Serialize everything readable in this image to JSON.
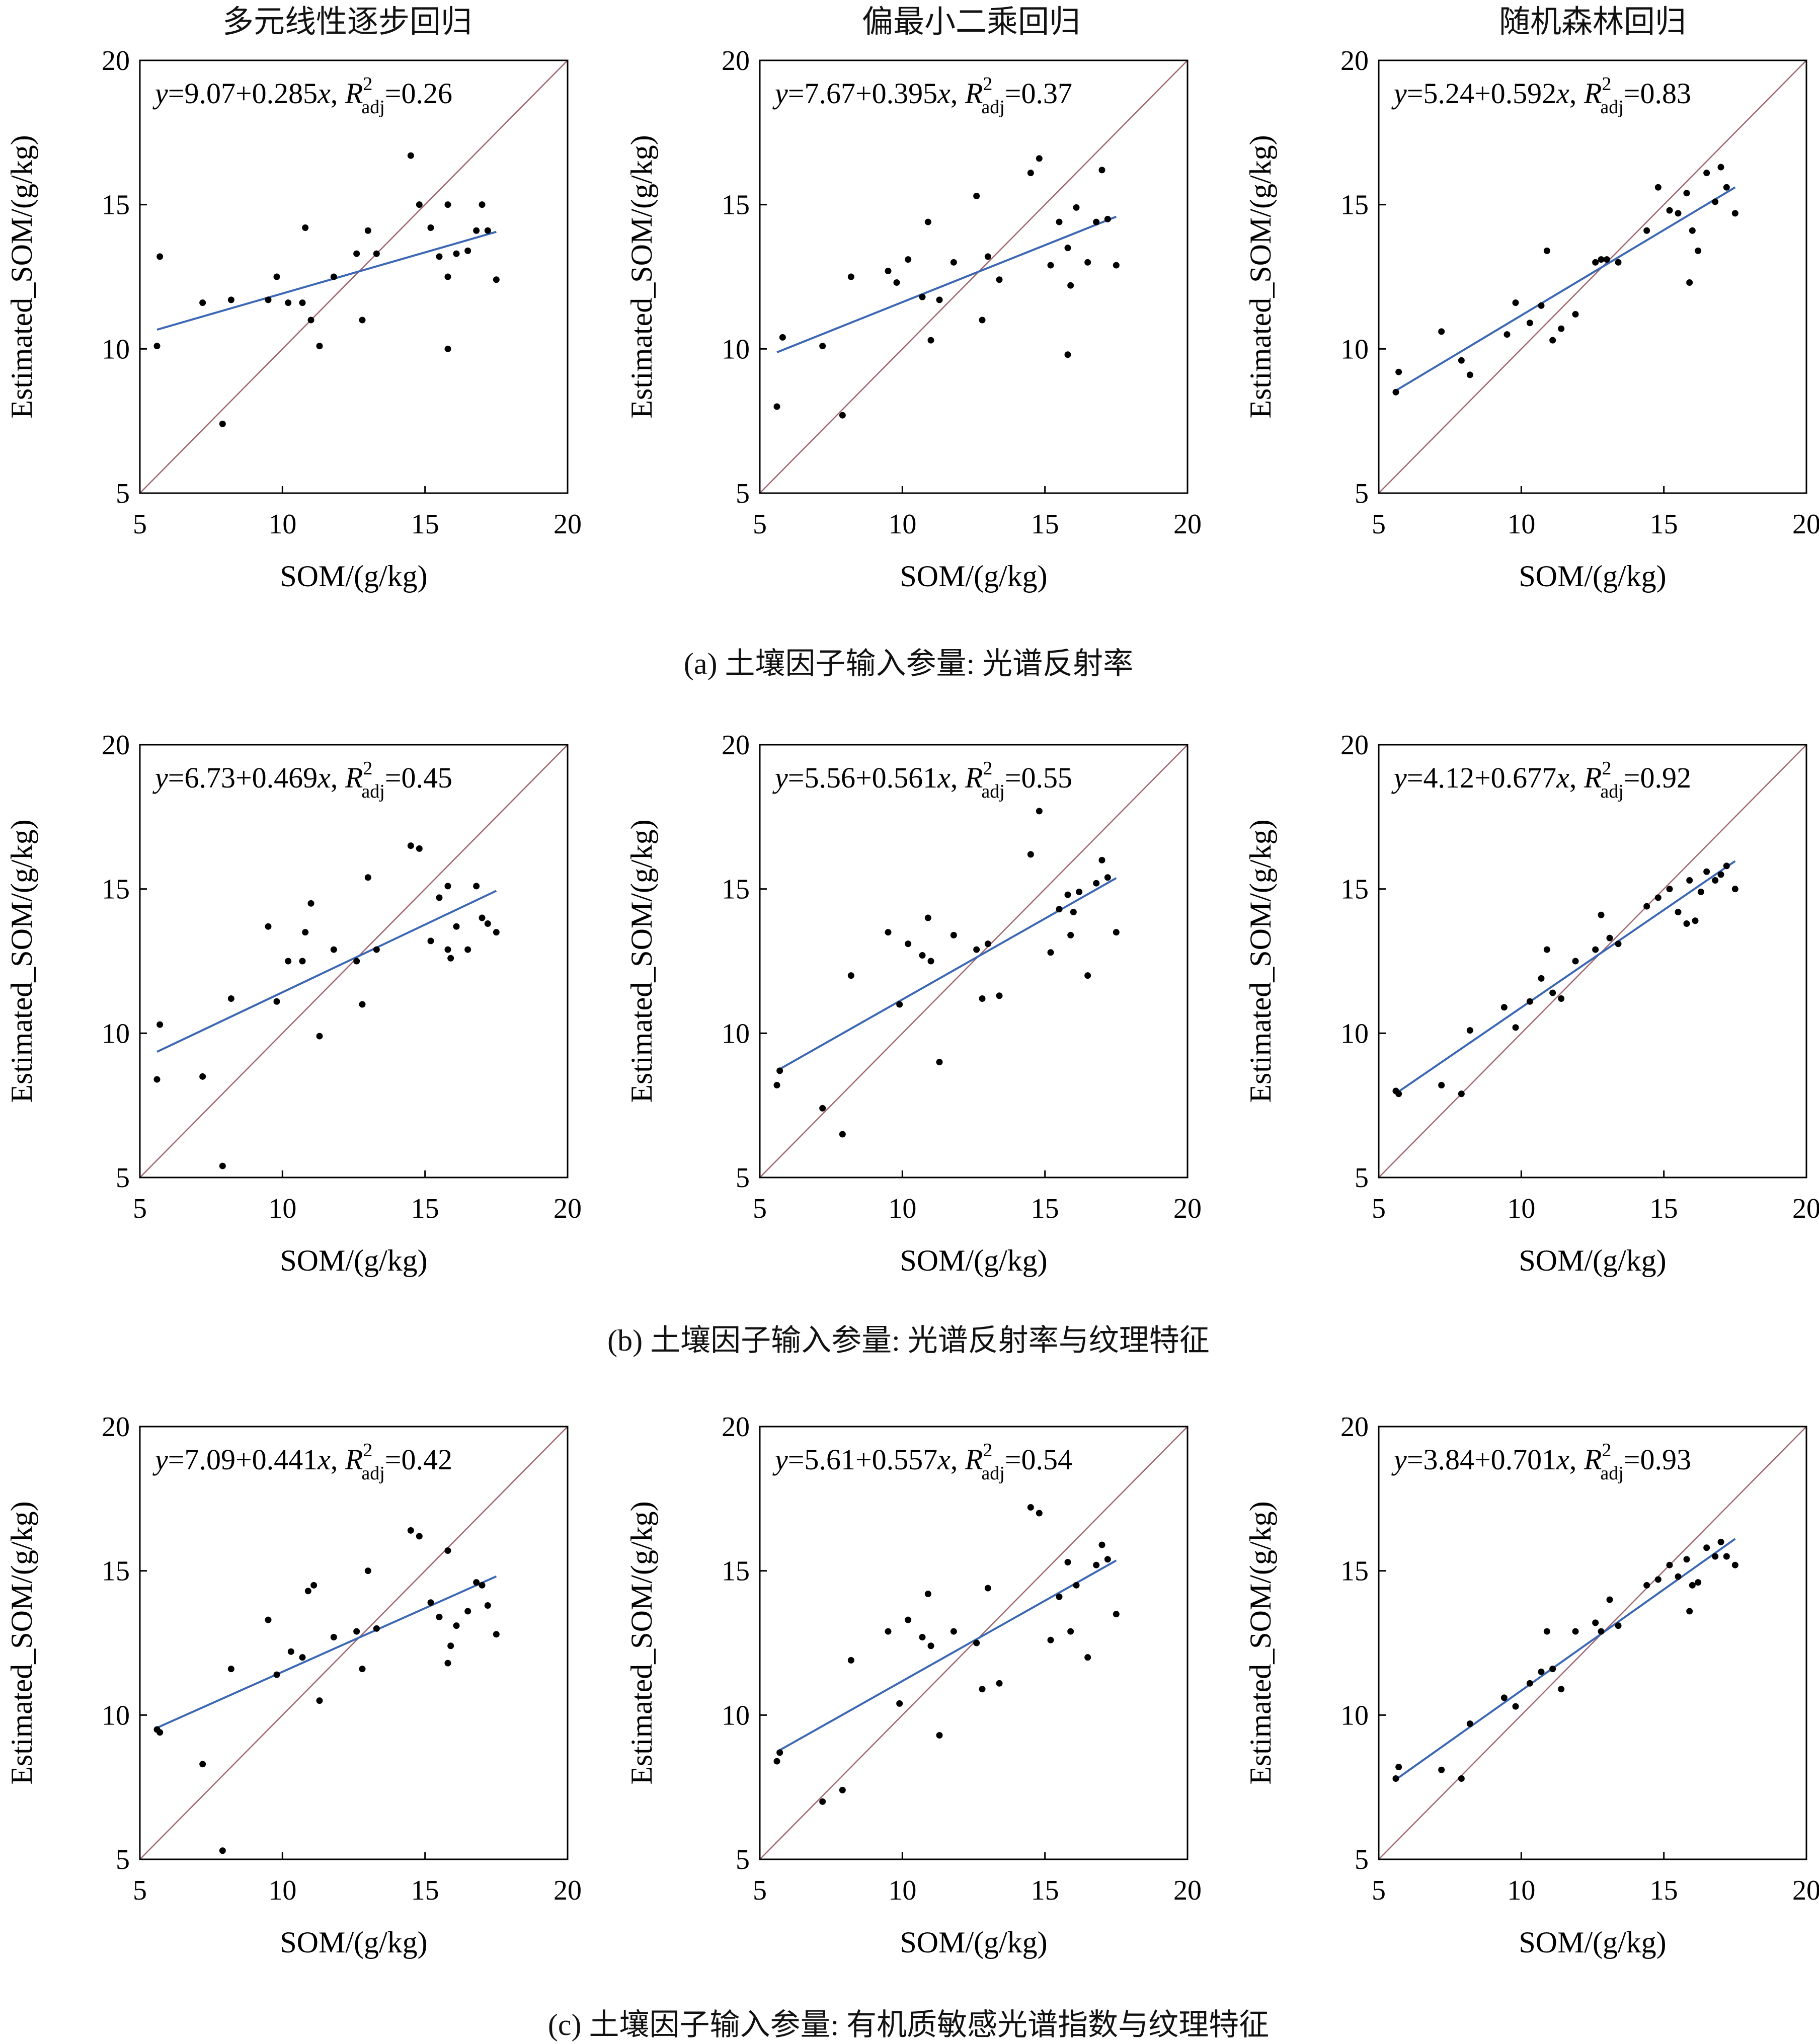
{
  "column_titles": [
    "多元线性逐步回归",
    "偏最小二乘回归",
    "随机森林回归"
  ],
  "row_captions": [
    "(a) 土壤因子输入参量: 光谱反射率",
    "(b) 土壤因子输入参量: 光谱反射率与纹理特征",
    "(c) 土壤因子输入参量: 有机质敏感光谱指数与纹理特征"
  ],
  "colors": {
    "fit_line": "#3b67b5",
    "identity_line": "#a0636b",
    "points": "#000000",
    "axes": "#000000"
  },
  "chart_data": [
    {
      "type": "scatter",
      "row": 0,
      "col": 0,
      "xlabel": "SOM/(g/kg)",
      "ylabel": "Estimated_SOM/(g/kg)",
      "xlim": [
        5,
        20
      ],
      "ylim": [
        5,
        20
      ],
      "xticks": [
        "5",
        "10",
        "15",
        "20"
      ],
      "yticks": [
        "5",
        "10",
        "15",
        "20"
      ],
      "equation": {
        "intercept": "9.07",
        "slope": "0.285",
        "r2": "0.26"
      },
      "fit": {
        "intercept": 9.07,
        "slope": 0.285
      },
      "points": [
        [
          5.6,
          10.1
        ],
        [
          5.7,
          13.2
        ],
        [
          7.2,
          11.6
        ],
        [
          7.9,
          7.4
        ],
        [
          8.2,
          11.7
        ],
        [
          9.5,
          11.7
        ],
        [
          9.8,
          12.5
        ],
        [
          10.2,
          11.6
        ],
        [
          10.7,
          11.6
        ],
        [
          10.8,
          14.2
        ],
        [
          11.0,
          11.0
        ],
        [
          11.3,
          10.1
        ],
        [
          11.8,
          12.5
        ],
        [
          12.6,
          13.3
        ],
        [
          12.8,
          11.0
        ],
        [
          13.0,
          14.1
        ],
        [
          13.3,
          13.3
        ],
        [
          14.5,
          16.7
        ],
        [
          14.8,
          15.0
        ],
        [
          15.2,
          14.2
        ],
        [
          15.5,
          13.2
        ],
        [
          15.8,
          15.0
        ],
        [
          15.8,
          12.5
        ],
        [
          15.8,
          10.0
        ],
        [
          16.1,
          13.3
        ],
        [
          16.5,
          13.4
        ],
        [
          16.8,
          14.1
        ],
        [
          17.0,
          15.0
        ],
        [
          17.2,
          14.1
        ],
        [
          17.5,
          12.4
        ]
      ]
    },
    {
      "type": "scatter",
      "row": 0,
      "col": 1,
      "xlabel": "SOM/(g/kg)",
      "ylabel": "Estimated_SOM/(g/kg)",
      "xlim": [
        5,
        20
      ],
      "ylim": [
        5,
        20
      ],
      "xticks": [
        "5",
        "10",
        "15",
        "20"
      ],
      "yticks": [
        "5",
        "10",
        "15",
        "20"
      ],
      "equation": {
        "intercept": "7.67",
        "slope": "0.395",
        "r2": "0.37"
      },
      "fit": {
        "intercept": 7.67,
        "slope": 0.395
      },
      "points": [
        [
          5.6,
          8.0
        ],
        [
          5.8,
          10.4
        ],
        [
          7.2,
          10.1
        ],
        [
          7.9,
          7.7
        ],
        [
          8.2,
          12.5
        ],
        [
          9.5,
          12.7
        ],
        [
          9.8,
          12.3
        ],
        [
          10.2,
          13.1
        ],
        [
          10.7,
          11.8
        ],
        [
          10.9,
          14.4
        ],
        [
          11.0,
          10.3
        ],
        [
          11.3,
          11.7
        ],
        [
          11.8,
          13.0
        ],
        [
          12.6,
          15.3
        ],
        [
          12.8,
          11.0
        ],
        [
          13.0,
          13.2
        ],
        [
          13.4,
          12.4
        ],
        [
          14.5,
          16.1
        ],
        [
          14.8,
          16.6
        ],
        [
          15.2,
          12.9
        ],
        [
          15.5,
          14.4
        ],
        [
          15.8,
          13.5
        ],
        [
          15.9,
          12.2
        ],
        [
          15.8,
          9.8
        ],
        [
          16.1,
          14.9
        ],
        [
          16.5,
          13.0
        ],
        [
          16.8,
          14.4
        ],
        [
          17.0,
          16.2
        ],
        [
          17.2,
          14.5
        ],
        [
          17.5,
          12.9
        ]
      ]
    },
    {
      "type": "scatter",
      "row": 0,
      "col": 2,
      "xlabel": "SOM/(g/kg)",
      "ylabel": "Estimated_SOM/(g/kg)",
      "xlim": [
        5,
        20
      ],
      "ylim": [
        5,
        20
      ],
      "xticks": [
        "5",
        "10",
        "15",
        "20"
      ],
      "yticks": [
        "5",
        "10",
        "15",
        "20"
      ],
      "equation": {
        "intercept": "5.24",
        "slope": "0.592",
        "r2": "0.83"
      },
      "fit": {
        "intercept": 5.24,
        "slope": 0.592
      },
      "points": [
        [
          5.6,
          8.5
        ],
        [
          5.7,
          9.2
        ],
        [
          7.2,
          10.6
        ],
        [
          7.9,
          9.6
        ],
        [
          8.2,
          9.1
        ],
        [
          9.5,
          10.5
        ],
        [
          9.8,
          11.6
        ],
        [
          10.3,
          10.9
        ],
        [
          10.7,
          11.5
        ],
        [
          10.9,
          13.4
        ],
        [
          11.1,
          10.3
        ],
        [
          11.4,
          10.7
        ],
        [
          11.9,
          11.2
        ],
        [
          12.6,
          13.0
        ],
        [
          12.8,
          13.1
        ],
        [
          13.0,
          13.1
        ],
        [
          13.4,
          13.0
        ],
        [
          14.4,
          14.1
        ],
        [
          14.8,
          15.6
        ],
        [
          15.2,
          14.8
        ],
        [
          15.5,
          14.7
        ],
        [
          15.8,
          15.4
        ],
        [
          15.9,
          12.3
        ],
        [
          16.0,
          14.1
        ],
        [
          16.2,
          13.4
        ],
        [
          16.5,
          16.1
        ],
        [
          16.8,
          15.1
        ],
        [
          17.0,
          16.3
        ],
        [
          17.2,
          15.6
        ],
        [
          17.5,
          14.7
        ]
      ]
    },
    {
      "type": "scatter",
      "row": 1,
      "col": 0,
      "xlabel": "SOM/(g/kg)",
      "ylabel": "Estimated_SOM/(g/kg)",
      "xlim": [
        5,
        20
      ],
      "ylim": [
        5,
        20
      ],
      "xticks": [
        "5",
        "10",
        "15",
        "20"
      ],
      "yticks": [
        "5",
        "10",
        "15",
        "20"
      ],
      "equation": {
        "intercept": "6.73",
        "slope": "0.469",
        "r2": "0.45"
      },
      "fit": {
        "intercept": 6.73,
        "slope": 0.469
      },
      "points": [
        [
          5.6,
          8.4
        ],
        [
          5.7,
          10.3
        ],
        [
          7.2,
          8.5
        ],
        [
          7.9,
          5.4
        ],
        [
          8.2,
          11.2
        ],
        [
          9.5,
          13.7
        ],
        [
          9.8,
          11.1
        ],
        [
          10.2,
          12.5
        ],
        [
          10.7,
          12.5
        ],
        [
          10.8,
          13.5
        ],
        [
          11.0,
          14.5
        ],
        [
          11.3,
          9.9
        ],
        [
          11.8,
          12.9
        ],
        [
          12.6,
          12.5
        ],
        [
          12.8,
          11.0
        ],
        [
          13.0,
          15.4
        ],
        [
          13.3,
          12.9
        ],
        [
          14.5,
          16.5
        ],
        [
          14.8,
          16.4
        ],
        [
          15.2,
          13.2
        ],
        [
          15.5,
          14.7
        ],
        [
          15.8,
          12.9
        ],
        [
          15.8,
          15.1
        ],
        [
          15.9,
          12.6
        ],
        [
          16.1,
          13.7
        ],
        [
          16.5,
          12.9
        ],
        [
          16.8,
          15.1
        ],
        [
          17.0,
          14.0
        ],
        [
          17.2,
          13.8
        ],
        [
          17.5,
          13.5
        ]
      ]
    },
    {
      "type": "scatter",
      "row": 1,
      "col": 1,
      "xlabel": "SOM/(g/kg)",
      "ylabel": "Estimated_SOM/(g/kg)",
      "xlim": [
        5,
        20
      ],
      "ylim": [
        5,
        20
      ],
      "xticks": [
        "5",
        "10",
        "15",
        "20"
      ],
      "yticks": [
        "5",
        "10",
        "15",
        "20"
      ],
      "equation": {
        "intercept": "5.56",
        "slope": "0.561",
        "r2": "0.55"
      },
      "fit": {
        "intercept": 5.56,
        "slope": 0.561
      },
      "points": [
        [
          5.6,
          8.2
        ],
        [
          5.7,
          8.7
        ],
        [
          7.2,
          7.4
        ],
        [
          7.9,
          6.5
        ],
        [
          8.2,
          12.0
        ],
        [
          9.5,
          13.5
        ],
        [
          9.9,
          11.0
        ],
        [
          10.2,
          13.1
        ],
        [
          10.7,
          12.7
        ],
        [
          10.9,
          14.0
        ],
        [
          11.0,
          12.5
        ],
        [
          11.3,
          9.0
        ],
        [
          11.8,
          13.4
        ],
        [
          12.6,
          12.9
        ],
        [
          12.8,
          11.2
        ],
        [
          13.0,
          13.1
        ],
        [
          13.4,
          11.3
        ],
        [
          14.5,
          16.2
        ],
        [
          14.8,
          17.7
        ],
        [
          15.2,
          12.8
        ],
        [
          15.5,
          14.3
        ],
        [
          15.8,
          14.8
        ],
        [
          15.9,
          13.4
        ],
        [
          16.0,
          14.2
        ],
        [
          16.2,
          14.9
        ],
        [
          16.5,
          12.0
        ],
        [
          16.8,
          15.2
        ],
        [
          17.0,
          16.0
        ],
        [
          17.2,
          15.4
        ],
        [
          17.5,
          13.5
        ]
      ]
    },
    {
      "type": "scatter",
      "row": 1,
      "col": 2,
      "xlabel": "SOM/(g/kg)",
      "ylabel": "Estimated_SOM/(g/kg)",
      "xlim": [
        5,
        20
      ],
      "ylim": [
        5,
        20
      ],
      "xticks": [
        "5",
        "10",
        "15",
        "20"
      ],
      "yticks": [
        "5",
        "10",
        "15",
        "20"
      ],
      "equation": {
        "intercept": "4.12",
        "slope": "0.677",
        "r2": "0.92"
      },
      "fit": {
        "intercept": 4.12,
        "slope": 0.677
      },
      "points": [
        [
          5.6,
          8.0
        ],
        [
          5.7,
          7.9
        ],
        [
          7.2,
          8.2
        ],
        [
          7.9,
          7.9
        ],
        [
          8.2,
          10.1
        ],
        [
          9.4,
          10.9
        ],
        [
          9.8,
          10.2
        ],
        [
          10.3,
          11.1
        ],
        [
          10.7,
          11.9
        ],
        [
          10.9,
          12.9
        ],
        [
          11.1,
          11.4
        ],
        [
          11.4,
          11.2
        ],
        [
          11.9,
          12.5
        ],
        [
          12.6,
          12.9
        ],
        [
          12.8,
          14.1
        ],
        [
          13.1,
          13.3
        ],
        [
          13.4,
          13.1
        ],
        [
          14.4,
          14.4
        ],
        [
          14.8,
          14.7
        ],
        [
          15.2,
          15.0
        ],
        [
          15.5,
          14.2
        ],
        [
          15.8,
          13.8
        ],
        [
          15.9,
          15.3
        ],
        [
          16.1,
          13.9
        ],
        [
          16.3,
          14.9
        ],
        [
          16.5,
          15.6
        ],
        [
          16.8,
          15.3
        ],
        [
          17.0,
          15.5
        ],
        [
          17.2,
          15.8
        ],
        [
          17.5,
          15.0
        ]
      ]
    },
    {
      "type": "scatter",
      "row": 2,
      "col": 0,
      "xlabel": "SOM/(g/kg)",
      "ylabel": "Estimated_SOM/(g/kg)",
      "xlim": [
        5,
        20
      ],
      "ylim": [
        5,
        20
      ],
      "xticks": [
        "5",
        "10",
        "15",
        "20"
      ],
      "yticks": [
        "5",
        "10",
        "15",
        "20"
      ],
      "equation": {
        "intercept": "7.09",
        "slope": "0.441",
        "r2": "0.42"
      },
      "fit": {
        "intercept": 7.09,
        "slope": 0.441
      },
      "points": [
        [
          5.6,
          9.5
        ],
        [
          5.7,
          9.4
        ],
        [
          7.2,
          8.3
        ],
        [
          7.9,
          5.3
        ],
        [
          8.2,
          11.6
        ],
        [
          9.5,
          13.3
        ],
        [
          9.8,
          11.4
        ],
        [
          10.3,
          12.2
        ],
        [
          10.7,
          12.0
        ],
        [
          10.9,
          14.3
        ],
        [
          11.1,
          14.5
        ],
        [
          11.3,
          10.5
        ],
        [
          11.8,
          12.7
        ],
        [
          12.6,
          12.9
        ],
        [
          12.8,
          11.6
        ],
        [
          13.0,
          15.0
        ],
        [
          13.3,
          13.0
        ],
        [
          14.5,
          16.4
        ],
        [
          14.8,
          16.2
        ],
        [
          15.2,
          13.9
        ],
        [
          15.5,
          13.4
        ],
        [
          15.8,
          15.7
        ],
        [
          15.8,
          11.8
        ],
        [
          15.9,
          12.4
        ],
        [
          16.1,
          13.1
        ],
        [
          16.5,
          13.6
        ],
        [
          16.8,
          14.6
        ],
        [
          17.0,
          14.5
        ],
        [
          17.2,
          13.8
        ],
        [
          17.5,
          12.8
        ]
      ]
    },
    {
      "type": "scatter",
      "row": 2,
      "col": 1,
      "xlabel": "SOM/(g/kg)",
      "ylabel": "Estimated_SOM/(g/kg)",
      "xlim": [
        5,
        20
      ],
      "ylim": [
        5,
        20
      ],
      "xticks": [
        "5",
        "10",
        "15",
        "20"
      ],
      "yticks": [
        "5",
        "10",
        "15",
        "20"
      ],
      "equation": {
        "intercept": "5.61",
        "slope": "0.557",
        "r2": "0.54"
      },
      "fit": {
        "intercept": 5.61,
        "slope": 0.557
      },
      "points": [
        [
          5.6,
          8.4
        ],
        [
          5.7,
          8.7
        ],
        [
          7.2,
          7.0
        ],
        [
          7.9,
          7.4
        ],
        [
          8.2,
          11.9
        ],
        [
          9.5,
          12.9
        ],
        [
          9.9,
          10.4
        ],
        [
          10.2,
          13.3
        ],
        [
          10.7,
          12.7
        ],
        [
          10.9,
          14.2
        ],
        [
          11.0,
          12.4
        ],
        [
          11.3,
          9.3
        ],
        [
          11.8,
          12.9
        ],
        [
          12.6,
          12.5
        ],
        [
          12.8,
          10.9
        ],
        [
          13.0,
          14.4
        ],
        [
          13.4,
          11.1
        ],
        [
          14.5,
          17.2
        ],
        [
          14.8,
          17.0
        ],
        [
          15.2,
          12.6
        ],
        [
          15.5,
          14.1
        ],
        [
          15.8,
          15.3
        ],
        [
          15.9,
          12.9
        ],
        [
          16.1,
          14.5
        ],
        [
          16.5,
          12.0
        ],
        [
          16.8,
          15.2
        ],
        [
          17.0,
          15.9
        ],
        [
          17.2,
          15.4
        ],
        [
          17.5,
          13.5
        ]
      ]
    },
    {
      "type": "scatter",
      "row": 2,
      "col": 2,
      "xlabel": "SOM/(g/kg)",
      "ylabel": "Estimated_SOM/(g/kg)",
      "xlim": [
        5,
        20
      ],
      "ylim": [
        5,
        20
      ],
      "xticks": [
        "5",
        "10",
        "15",
        "20"
      ],
      "yticks": [
        "5",
        "10",
        "15",
        "20"
      ],
      "equation": {
        "intercept": "3.84",
        "slope": "0.701",
        "r2": "0.93"
      },
      "fit": {
        "intercept": 3.84,
        "slope": 0.701
      },
      "points": [
        [
          5.6,
          7.8
        ],
        [
          5.7,
          8.2
        ],
        [
          7.2,
          8.1
        ],
        [
          7.9,
          7.8
        ],
        [
          8.2,
          9.7
        ],
        [
          9.4,
          10.6
        ],
        [
          9.8,
          10.3
        ],
        [
          10.3,
          11.1
        ],
        [
          10.7,
          11.5
        ],
        [
          10.9,
          12.9
        ],
        [
          11.1,
          11.6
        ],
        [
          11.4,
          10.9
        ],
        [
          11.9,
          12.9
        ],
        [
          12.6,
          13.2
        ],
        [
          12.8,
          12.9
        ],
        [
          13.1,
          14.0
        ],
        [
          13.4,
          13.1
        ],
        [
          14.4,
          14.5
        ],
        [
          14.8,
          14.7
        ],
        [
          15.2,
          15.2
        ],
        [
          15.5,
          14.8
        ],
        [
          15.8,
          15.4
        ],
        [
          15.9,
          13.6
        ],
        [
          16.0,
          14.5
        ],
        [
          16.2,
          14.6
        ],
        [
          16.5,
          15.8
        ],
        [
          16.8,
          15.5
        ],
        [
          17.0,
          16.0
        ],
        [
          17.2,
          15.5
        ],
        [
          17.5,
          15.2
        ]
      ]
    }
  ]
}
